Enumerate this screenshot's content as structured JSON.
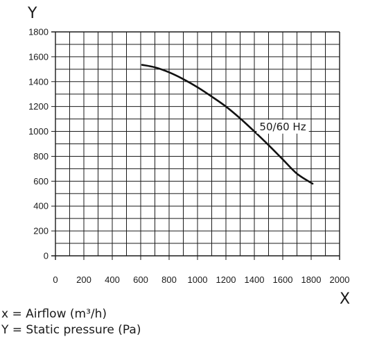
{
  "chart_data": {
    "type": "line",
    "x_axis_letter": "X",
    "y_axis_letter": "Y",
    "xlim": [
      0,
      2000
    ],
    "ylim": [
      0,
      1800
    ],
    "x_ticks": [
      "0",
      "200",
      "400",
      "600",
      "800",
      "1000",
      "1200",
      "1400",
      "1600",
      "1800",
      "2000"
    ],
    "y_ticks": [
      "0",
      "200",
      "400",
      "600",
      "800",
      "1000",
      "1200",
      "1400",
      "1600",
      "1800"
    ],
    "x_minor_step": 100,
    "y_minor_step": 100,
    "grid": true,
    "series": [
      {
        "name": "50/60 Hz",
        "color": "#111111",
        "points": [
          [
            610,
            1535
          ],
          [
            700,
            1515
          ],
          [
            800,
            1475
          ],
          [
            900,
            1420
          ],
          [
            1000,
            1355
          ],
          [
            1100,
            1280
          ],
          [
            1200,
            1200
          ],
          [
            1300,
            1105
          ],
          [
            1400,
            1000
          ],
          [
            1500,
            890
          ],
          [
            1600,
            775
          ],
          [
            1700,
            660
          ],
          [
            1810,
            580
          ]
        ]
      }
    ],
    "annotation": {
      "text": "50/60 Hz",
      "x": 1600,
      "y": 1010
    }
  },
  "legend": {
    "x_line": "x = Airflow (m³/h)",
    "y_line": "Y = Static pressure (Pa)"
  }
}
